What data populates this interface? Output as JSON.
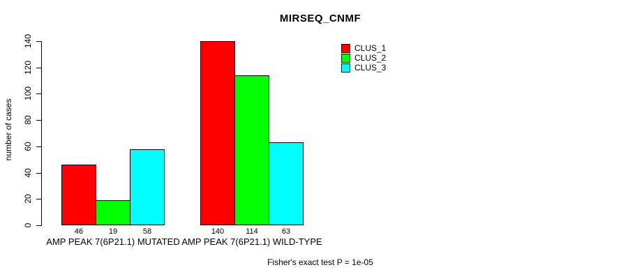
{
  "chart_data": {
    "type": "bar",
    "title": "MIRSEQ_CNMF",
    "xlabel": "",
    "ylabel": "number of cases",
    "categories": [
      "AMP PEAK 7(6P21.1) MUTATED",
      "AMP PEAK 7(6P21.1) WILD-TYPE"
    ],
    "series": [
      {
        "name": "CLUS_1",
        "color": "#ff0000",
        "values": [
          46,
          140
        ]
      },
      {
        "name": "CLUS_2",
        "color": "#00ff00",
        "values": [
          19,
          114
        ]
      },
      {
        "name": "CLUS_3",
        "color": "#00ffff",
        "values": [
          58,
          63
        ]
      }
    ],
    "show_value_labels": true,
    "ylim": [
      0,
      140
    ],
    "yticks": [
      0,
      20,
      40,
      60,
      80,
      100,
      120,
      140
    ],
    "grid": false,
    "legend_position": "top-right",
    "annotation": "Fisher's exact test P = 1e-05",
    "colors": {
      "bar_border": "#000000",
      "axis": "#000000",
      "text": "#000000",
      "background": "#ffffff"
    }
  }
}
